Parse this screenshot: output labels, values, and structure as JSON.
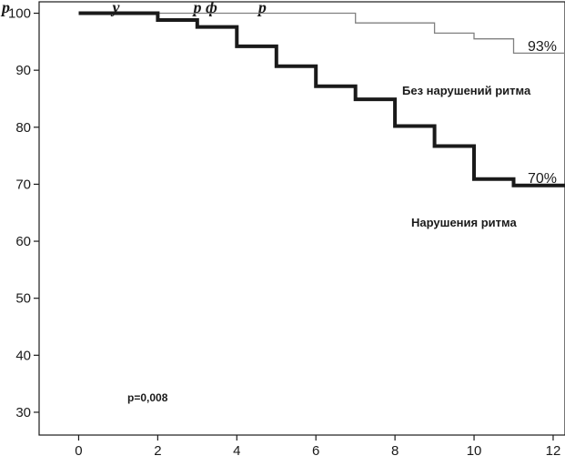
{
  "header_fragment": "р                         у                  р ф          р",
  "chart_data": {
    "type": "line",
    "step": true,
    "xlim": [
      -1,
      12.3
    ],
    "ylim": [
      26,
      102
    ],
    "xticks": [
      0,
      2,
      4,
      6,
      8,
      10,
      12
    ],
    "yticks": [
      30,
      40,
      50,
      60,
      70,
      80,
      90,
      100
    ],
    "series": [
      {
        "name": "Без нарушений ритма",
        "end_label": "93%",
        "color": "#808080",
        "line_weight": "thin",
        "points": [
          [
            0,
            100
          ],
          [
            7,
            100
          ],
          [
            7,
            98.3
          ],
          [
            9,
            98.3
          ],
          [
            9,
            96.5
          ],
          [
            10,
            96.5
          ],
          [
            10,
            95.5
          ],
          [
            11,
            95.5
          ],
          [
            11,
            93
          ],
          [
            12.3,
            93
          ]
        ]
      },
      {
        "name": "Нарушения ритма",
        "end_label": "70%",
        "color": "#1a1a1a",
        "line_weight": "thick",
        "points": [
          [
            0,
            100
          ],
          [
            2,
            100
          ],
          [
            2,
            98.8
          ],
          [
            3,
            98.8
          ],
          [
            3,
            97.6
          ],
          [
            4,
            97.6
          ],
          [
            4,
            94.2
          ],
          [
            5,
            94.2
          ],
          [
            5,
            90.7
          ],
          [
            6,
            90.7
          ],
          [
            6,
            87.2
          ],
          [
            7,
            87.2
          ],
          [
            7,
            84.9
          ],
          [
            8,
            84.9
          ],
          [
            8,
            80.2
          ],
          [
            9,
            80.2
          ],
          [
            9,
            76.7
          ],
          [
            10,
            76.7
          ],
          [
            10,
            70.9
          ],
          [
            11,
            70.9
          ],
          [
            11,
            69.8
          ],
          [
            12.3,
            69.8
          ]
        ]
      }
    ],
    "annotations": [
      {
        "text": "p=0,008"
      }
    ]
  }
}
